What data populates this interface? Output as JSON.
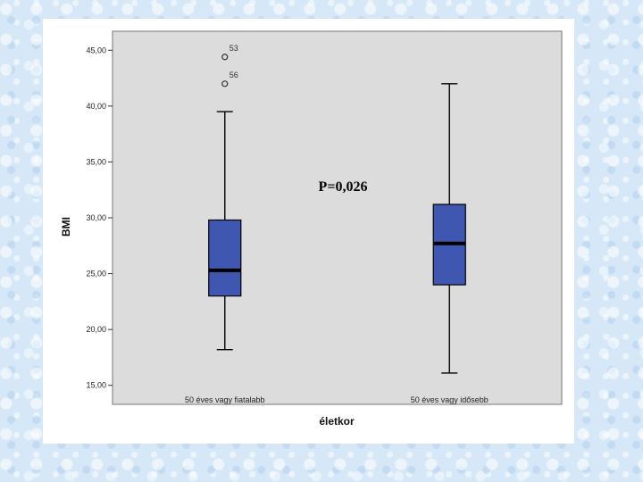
{
  "chart_data": {
    "type": "boxplot",
    "xlabel": "életkor",
    "ylabel": "BMI",
    "ylim": [
      13.3,
      46.7
    ],
    "yticks": [
      "15,00",
      "20,00",
      "25,00",
      "30,00",
      "35,00",
      "40,00",
      "45,00"
    ],
    "ytick_values": [
      15,
      20,
      25,
      30,
      35,
      40,
      45
    ],
    "grid": false,
    "categories": [
      "50 éves vagy fiatalabb",
      "50 éves vagy idősebb"
    ],
    "boxes": [
      {
        "whisker_low": 18.2,
        "q1": 23.0,
        "median": 25.3,
        "q3": 29.8,
        "whisker_high": 39.5,
        "outliers": [
          {
            "value": 44.4,
            "label": "53"
          },
          {
            "value": 42.0,
            "label": "56"
          }
        ]
      },
      {
        "whisker_low": 16.1,
        "q1": 24.0,
        "median": 27.7,
        "q3": 31.2,
        "whisker_high": 42.0,
        "outliers": []
      }
    ],
    "annotation": "P=0,026",
    "colors": {
      "box_fill": "#3f57b0",
      "plot_bg": "#dcdcdc",
      "median": "#000000"
    }
  }
}
